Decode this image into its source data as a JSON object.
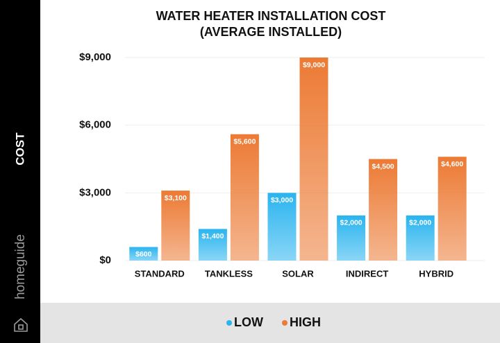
{
  "brand": "homeguide",
  "chart_data": {
    "type": "bar",
    "title": "WATER HEATER INSTALLATION COST",
    "subtitle": "(AVERAGE INSTALLED)",
    "y_label": "COST",
    "categories": [
      "STANDARD",
      "TANKLESS",
      "SOLAR",
      "INDIRECT",
      "HYBRID"
    ],
    "series": [
      {
        "name": "LOW",
        "color": "#2ab4ef",
        "values": [
          600,
          1400,
          3000,
          2000,
          2000
        ],
        "value_labels": [
          "$600",
          "$1,400",
          "$3,000",
          "$2,000",
          "$2,000"
        ]
      },
      {
        "name": "HIGH",
        "color": "#ec7a34",
        "values": [
          3100,
          5600,
          9000,
          4500,
          4600
        ],
        "value_labels": [
          "$3,100",
          "$5,600",
          "$9,000",
          "$4,500",
          "$4,600"
        ]
      }
    ],
    "ylim": [
      0,
      9000
    ],
    "yticks": [
      {
        "value": 0,
        "label": "$0"
      },
      {
        "value": 3000,
        "label": "$3,000"
      },
      {
        "value": 6000,
        "label": "$6,000"
      },
      {
        "value": 9000,
        "label": "$9,000"
      }
    ],
    "grid": true,
    "legend": "bottom"
  }
}
